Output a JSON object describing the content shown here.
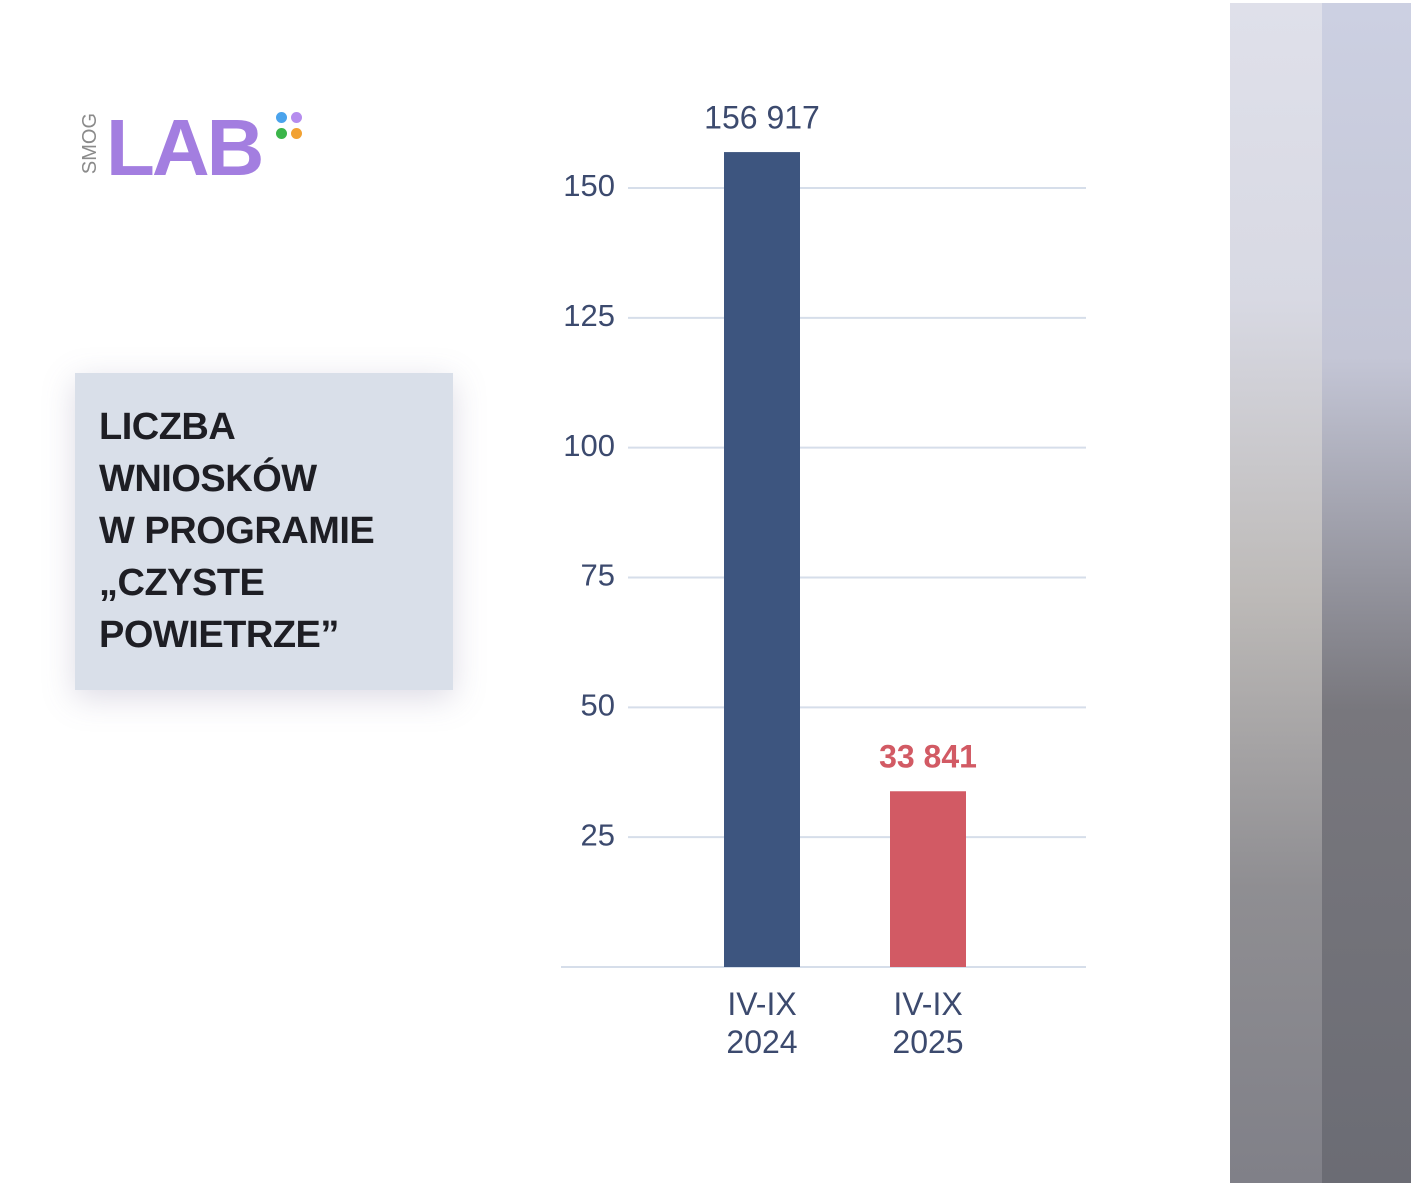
{
  "logo": {
    "small": "SMOG",
    "big": "LAB"
  },
  "chart_data": {
    "type": "bar",
    "title": [
      "LICZBA",
      "WNIOSKÓW",
      "W PROGRAMIE",
      "„CZYSTE",
      "POWIETRZE”"
    ],
    "categories": [
      "IV-IX 2024",
      "IV-IX 2025"
    ],
    "values": [
      156.917,
      33.841
    ],
    "value_labels": [
      "156 917",
      "33 841"
    ],
    "colors": [
      "#3d557f",
      "#d25a64"
    ],
    "value_label_colors": [
      "#3c4a6e",
      "#d25a64"
    ],
    "ylim": [
      0,
      150
    ],
    "yticks": [
      25,
      50,
      75,
      100,
      125,
      150
    ],
    "grid": true
  }
}
